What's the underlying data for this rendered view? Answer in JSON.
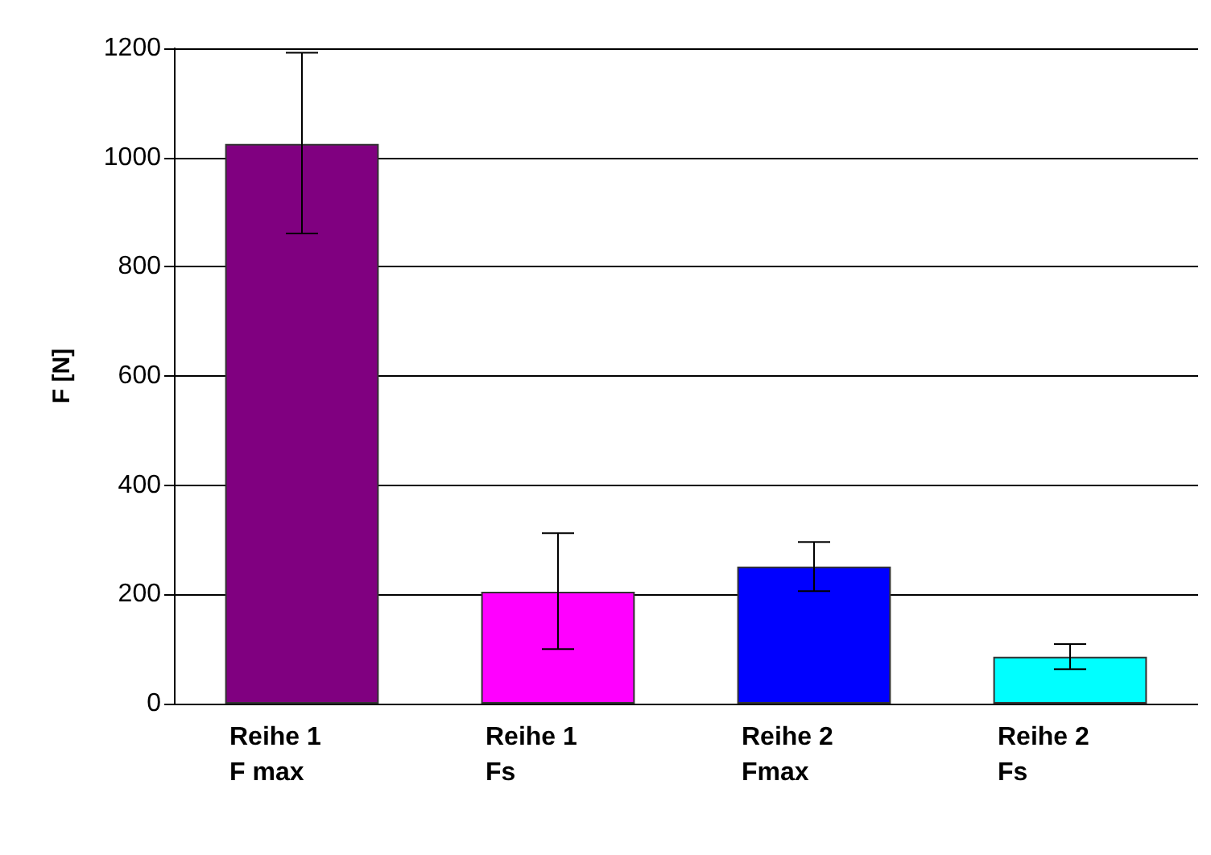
{
  "chart_data": {
    "type": "bar",
    "ylabel": "F [N]",
    "categories": [
      "Reihe 1\nF max",
      "Reihe 1\nFs",
      "Reihe 2\nFmax",
      "Reihe 2\nFs"
    ],
    "values": [
      1025,
      205,
      251,
      86
    ],
    "colors": [
      "#800080",
      "#ff00ff",
      "#0000ff",
      "#00ffff"
    ],
    "errors": [
      [
        861,
        1192
      ],
      [
        100,
        312
      ],
      [
        206,
        296
      ],
      [
        63,
        109
      ]
    ],
    "ylim": [
      0,
      1200
    ],
    "yticks": [
      0,
      200,
      400,
      600,
      800,
      1000,
      1200
    ],
    "grid": "y"
  }
}
